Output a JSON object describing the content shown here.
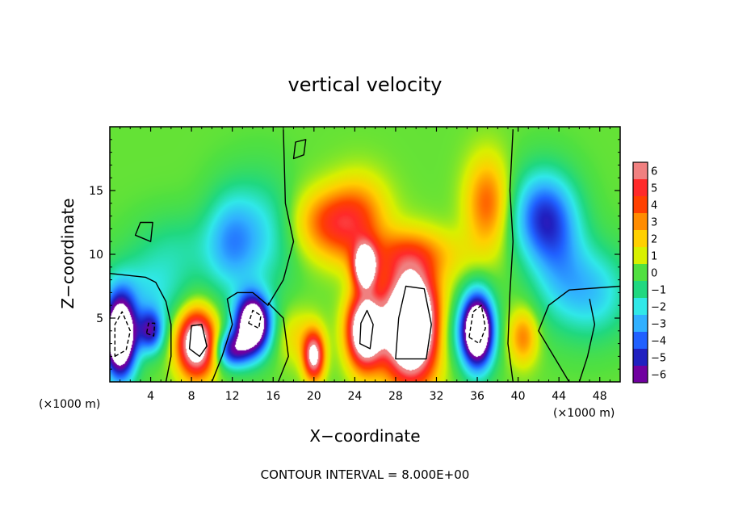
{
  "chart_data": {
    "type": "heatmap",
    "title": "vertical velocity",
    "xlabel": "X−coordinate",
    "ylabel": "Z−coordinate",
    "x_unit_left": "(×1000 m)",
    "x_unit_right": "(×1000 m)",
    "footnote": "CONTOUR INTERVAL = 8.000E+00",
    "xlim": [
      0,
      50
    ],
    "ylim": [
      0,
      20
    ],
    "x_ticks": [
      4,
      8,
      12,
      16,
      20,
      24,
      28,
      32,
      36,
      40,
      44,
      48
    ],
    "x_tick_labels": [
      "4",
      "8",
      "12",
      "16",
      "20",
      "24",
      "28",
      "32",
      "36",
      "40",
      "44",
      "48"
    ],
    "y_ticks": [
      5,
      10,
      15
    ],
    "y_tick_labels": [
      "5",
      "10",
      "15"
    ],
    "colorbar": {
      "min": -6,
      "max": 6,
      "levels": [
        6,
        5,
        4,
        3,
        2,
        1,
        0,
        -1,
        -2,
        -3,
        -4,
        -5,
        -6
      ],
      "level_labels": [
        "6",
        "5",
        "4",
        "3",
        "2",
        "1",
        "0",
        "−1",
        "−2",
        "−3",
        "−4",
        "−5",
        "−6"
      ],
      "colors": [
        "#f08080",
        "#ff2a2a",
        "#ff4000",
        "#ff8c00",
        "#ffd000",
        "#d8f000",
        "#50e040",
        "#20d880",
        "#30e8e8",
        "#30b0ff",
        "#2060ff",
        "#2020c0",
        "#7000a0"
      ],
      "background": "#6ce06c",
      "saturated_color": "#ffffff"
    },
    "features": [
      {
        "x": 29.5,
        "z": 4.5,
        "sx": 1.9,
        "sz": 3.0,
        "value": 13
      },
      {
        "x": 25.0,
        "z": 4.0,
        "sx": 1.2,
        "sz": 2.0,
        "value": 10
      },
      {
        "x": 25.0,
        "z": 9.0,
        "sx": 0.8,
        "sz": 1.2,
        "value": 8
      },
      {
        "x": 20.0,
        "z": 2.0,
        "sx": 0.7,
        "sz": 1.3,
        "value": 7
      },
      {
        "x": 8.5,
        "z": 3.0,
        "sx": 1.3,
        "sz": 1.8,
        "value": 9
      },
      {
        "x": 21.5,
        "z": 12.5,
        "sx": 2.3,
        "sz": 1.8,
        "value": 3.5
      },
      {
        "x": 24.5,
        "z": 13.0,
        "sx": 2.0,
        "sz": 2.2,
        "value": 2.8
      },
      {
        "x": 37.0,
        "z": 14.0,
        "sx": 1.5,
        "sz": 2.5,
        "value": 3.5
      },
      {
        "x": 29.0,
        "z": 10.0,
        "sx": 4.0,
        "sz": 1.4,
        "value": 2.5
      },
      {
        "x": 40.5,
        "z": 3.5,
        "sx": 1.0,
        "sz": 1.5,
        "value": 3.0
      },
      {
        "x": 18.5,
        "z": 3.5,
        "sx": 1.5,
        "sz": 1.5,
        "value": 1.5
      },
      {
        "x": 33.0,
        "z": 4.0,
        "sx": 1.3,
        "sz": 2.0,
        "value": -1.5
      },
      {
        "x": 36.0,
        "z": 4.0,
        "sx": 1.1,
        "sz": 2.0,
        "value": -11
      },
      {
        "x": 1.0,
        "z": 3.5,
        "sx": 1.1,
        "sz": 2.2,
        "value": -11
      },
      {
        "x": 14.0,
        "z": 4.5,
        "sx": 1.2,
        "sz": 1.6,
        "value": -10
      },
      {
        "x": 12.0,
        "z": 2.5,
        "sx": 1.2,
        "sz": 1.0,
        "value": -5
      },
      {
        "x": 4.0,
        "z": 4.0,
        "sx": 0.9,
        "sz": 1.2,
        "value": -5
      },
      {
        "x": 42.5,
        "z": 13.0,
        "sx": 2.2,
        "sz": 2.5,
        "value": -4.5
      },
      {
        "x": 11.8,
        "z": 11.0,
        "sx": 1.8,
        "sz": 2.8,
        "value": -2.8
      },
      {
        "x": 15.0,
        "z": 11.5,
        "sx": 2.2,
        "sz": 3.2,
        "value": -2.0
      },
      {
        "x": 3.5,
        "z": 7.0,
        "sx": 3.0,
        "sz": 2.0,
        "value": -2.0
      },
      {
        "x": 47.5,
        "z": 7.0,
        "sx": 2.5,
        "sz": 2.5,
        "value": -2.5
      },
      {
        "x": 44.0,
        "z": 9.0,
        "sx": 2.0,
        "sz": 3.0,
        "value": -2.0
      },
      {
        "x": 6.5,
        "z": 10.5,
        "sx": 3.0,
        "sz": 2.0,
        "value": -1.2
      }
    ],
    "contours": [
      {
        "style": "solid",
        "points": [
          [
            0,
            8.5
          ],
          [
            3.5,
            8.2
          ],
          [
            4.5,
            7.8
          ],
          [
            5.5,
            6.3
          ],
          [
            6.0,
            4.5
          ],
          [
            6.0,
            2.0
          ],
          [
            5.5,
            0
          ]
        ]
      },
      {
        "style": "solid",
        "points": [
          [
            10.0,
            0
          ],
          [
            11.0,
            2.0
          ],
          [
            12.0,
            4.5
          ],
          [
            11.5,
            6.5
          ],
          [
            12.5,
            7.0
          ],
          [
            14.0,
            7.0
          ],
          [
            15.5,
            6.0
          ],
          [
            17.0,
            8.0
          ],
          [
            18.0,
            11.0
          ],
          [
            17.2,
            14.0
          ],
          [
            17.0,
            19.8
          ]
        ]
      },
      {
        "style": "solid",
        "points": [
          [
            16.5,
            0
          ],
          [
            17.5,
            2.0
          ],
          [
            17.0,
            5.0
          ],
          [
            15.5,
            6.2
          ]
        ]
      },
      {
        "style": "solid",
        "points": [
          [
            39.5,
            0
          ],
          [
            39.0,
            3.0
          ],
          [
            39.2,
            7.0
          ],
          [
            39.5,
            11.0
          ],
          [
            39.2,
            15.0
          ],
          [
            39.5,
            19.8
          ]
        ]
      },
      {
        "style": "solid",
        "points": [
          [
            50,
            7.5
          ],
          [
            45.0,
            7.2
          ],
          [
            43.0,
            6.0
          ],
          [
            42.0,
            4.0
          ],
          [
            43.5,
            2.0
          ],
          [
            45.0,
            0
          ]
        ]
      },
      {
        "style": "solid",
        "points": [
          [
            46.0,
            0
          ],
          [
            46.8,
            2.0
          ],
          [
            47.5,
            4.5
          ],
          [
            47.0,
            6.5
          ]
        ]
      },
      {
        "style": "solid",
        "closed": true,
        "points": [
          [
            28.0,
            1.8
          ],
          [
            31.0,
            1.8
          ],
          [
            31.5,
            4.5
          ],
          [
            30.8,
            7.3
          ],
          [
            29.0,
            7.5
          ],
          [
            28.3,
            5.0
          ]
        ]
      },
      {
        "style": "solid",
        "closed": true,
        "points": [
          [
            7.8,
            2.6
          ],
          [
            8.8,
            2.0
          ],
          [
            9.5,
            2.8
          ],
          [
            9.0,
            4.5
          ],
          [
            8.0,
            4.4
          ]
        ]
      },
      {
        "style": "solid",
        "closed": true,
        "points": [
          [
            24.5,
            3.0
          ],
          [
            25.5,
            2.6
          ],
          [
            25.8,
            4.5
          ],
          [
            25.2,
            5.6
          ],
          [
            24.6,
            4.6
          ]
        ]
      },
      {
        "style": "solid",
        "closed": true,
        "points": [
          [
            2.5,
            11.5
          ],
          [
            4.0,
            11.0
          ],
          [
            4.2,
            12.5
          ],
          [
            3.0,
            12.5
          ]
        ]
      },
      {
        "style": "solid",
        "closed": true,
        "points": [
          [
            18.0,
            17.5
          ],
          [
            19.0,
            17.8
          ],
          [
            19.2,
            19.0
          ],
          [
            18.2,
            18.8
          ]
        ]
      },
      {
        "style": "dashed",
        "closed": true,
        "points": [
          [
            35.2,
            3.5
          ],
          [
            36.2,
            3.0
          ],
          [
            36.8,
            4.2
          ],
          [
            36.4,
            6.0
          ],
          [
            35.6,
            5.5
          ]
        ]
      },
      {
        "style": "dashed",
        "closed": true,
        "points": [
          [
            0.5,
            2.0
          ],
          [
            1.6,
            2.5
          ],
          [
            2.0,
            4.0
          ],
          [
            1.2,
            5.5
          ],
          [
            0.5,
            4.5
          ]
        ]
      },
      {
        "style": "dashed",
        "closed": true,
        "points": [
          [
            13.6,
            4.6
          ],
          [
            14.6,
            4.2
          ],
          [
            14.8,
            5.2
          ],
          [
            14.0,
            5.6
          ]
        ]
      },
      {
        "style": "dashed",
        "closed": true,
        "points": [
          [
            3.6,
            3.8
          ],
          [
            4.3,
            3.6
          ],
          [
            4.4,
            4.6
          ],
          [
            3.8,
            4.6
          ]
        ]
      }
    ],
    "grid": false,
    "legend": "colorbar-right"
  }
}
